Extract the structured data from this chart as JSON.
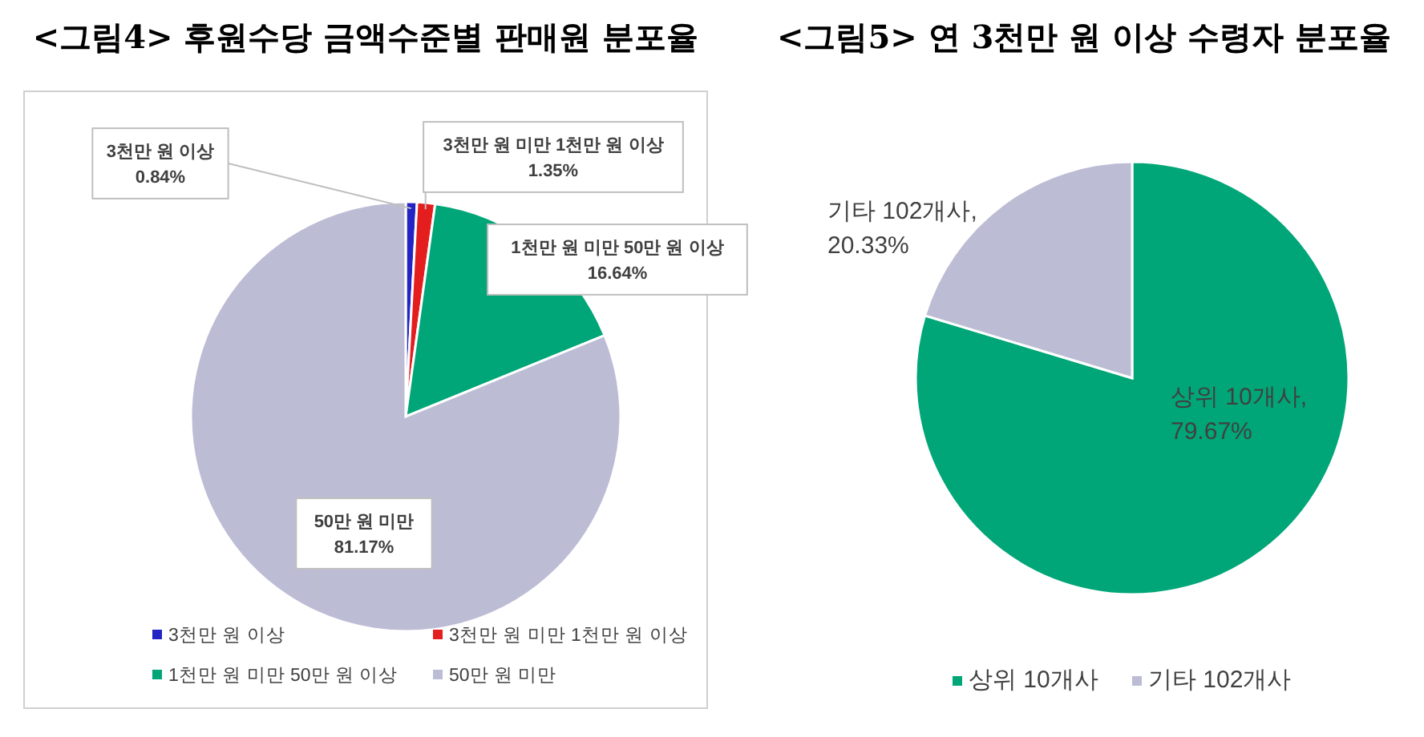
{
  "chart_data": [
    {
      "type": "pie",
      "title": "<그림4> 후원수당 금액수준별 판매원 분포율",
      "categories": [
        "3천만 원 이상",
        "3천만 원 미만 1천만 원 이상",
        "1천만 원 미만 50만 원 이상",
        "50만 원 미만"
      ],
      "values": [
        0.84,
        1.35,
        16.64,
        81.17
      ],
      "colors": [
        "#2424c4",
        "#e41e1e",
        "#00a677",
        "#bcbdd5"
      ],
      "value_labels": [
        "3천만 원 이상\n0.84%",
        "3천만 원 미만 1천만 원 이상\n1.35%",
        "1천만 원 미만 50만 원 이상\n16.64%",
        "50만 원 미만\n81.17%"
      ],
      "legend": "bottom"
    },
    {
      "type": "pie",
      "title": "<그림5> 연 3천만 원 이상 수령자 분포율",
      "categories": [
        "상위 10개사",
        "기타 102개사"
      ],
      "values": [
        79.67,
        20.33
      ],
      "colors": [
        "#00a677",
        "#bcbdd5"
      ],
      "value_labels": [
        "상위 10개사,\n79.67%",
        "기타 102개사,\n20.33%"
      ],
      "legend": "bottom"
    }
  ]
}
